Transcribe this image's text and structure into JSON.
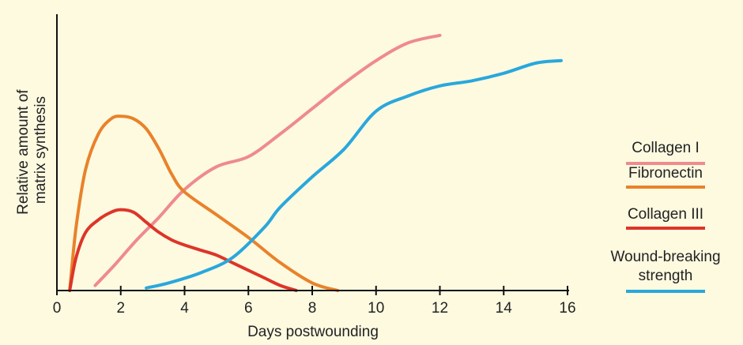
{
  "chart_data": {
    "type": "line",
    "xlabel": "Days postwounding",
    "ylabel": [
      "Relative amount of",
      "matrix synthesis"
    ],
    "xlim": [
      0,
      16
    ],
    "ylim": [
      0,
      1
    ],
    "xticks": [
      "0",
      "2",
      "4",
      "6",
      "8",
      "10",
      "12",
      "14",
      "16"
    ],
    "y_ticks_shown": false,
    "grid": false,
    "legend_position": "right",
    "series": [
      {
        "name": "Collagen I",
        "color": "#ef8a8f",
        "x": [
          1.2,
          1.8,
          2.5,
          3.2,
          4.0,
          5.0,
          6.0,
          7.0,
          8.0,
          9.0,
          10.0,
          11.0,
          12.0
        ],
        "y": [
          0.02,
          0.1,
          0.2,
          0.29,
          0.4,
          0.49,
          0.53,
          0.62,
          0.72,
          0.82,
          0.91,
          0.98,
          1.01
        ]
      },
      {
        "name": "Fibronectin",
        "color": "#e9822a",
        "x": [
          0.4,
          0.6,
          0.9,
          1.3,
          1.7,
          2.0,
          2.4,
          2.8,
          3.2,
          3.6,
          4.0,
          5.0,
          6.0,
          7.0,
          8.0,
          8.8
        ],
        "y": [
          0.0,
          0.25,
          0.48,
          0.62,
          0.68,
          0.69,
          0.68,
          0.64,
          0.56,
          0.46,
          0.39,
          0.3,
          0.21,
          0.11,
          0.03,
          0.0
        ]
      },
      {
        "name": "Collagen III",
        "color": "#dd3528",
        "x": [
          0.4,
          0.6,
          0.9,
          1.3,
          1.7,
          2.0,
          2.4,
          2.8,
          3.2,
          3.6,
          4.0,
          4.5,
          5.0,
          5.5,
          6.0,
          6.5,
          7.0,
          7.5
        ],
        "y": [
          0.0,
          0.13,
          0.23,
          0.28,
          0.31,
          0.32,
          0.31,
          0.27,
          0.23,
          0.2,
          0.18,
          0.16,
          0.14,
          0.11,
          0.08,
          0.05,
          0.02,
          0.0
        ]
      },
      {
        "name": "Wound-breaking strength",
        "color": "#2aa7dc",
        "x": [
          2.8,
          3.5,
          4.5,
          5.5,
          6.5,
          7.0,
          8.0,
          9.0,
          10.0,
          11.0,
          12.0,
          13.0,
          14.0,
          15.0,
          15.8
        ],
        "y": [
          0.01,
          0.03,
          0.07,
          0.13,
          0.25,
          0.33,
          0.45,
          0.56,
          0.71,
          0.77,
          0.81,
          0.83,
          0.86,
          0.9,
          0.91
        ]
      }
    ],
    "legend": [
      {
        "label": "Collagen I",
        "color": "#ef8a8f"
      },
      {
        "label": "Fibronectin",
        "color": "#e9822a"
      },
      {
        "label": "Collagen III",
        "color": "#dd3528"
      },
      {
        "label": [
          "Wound-breaking",
          "strength"
        ],
        "color": "#2aa7dc"
      }
    ]
  }
}
